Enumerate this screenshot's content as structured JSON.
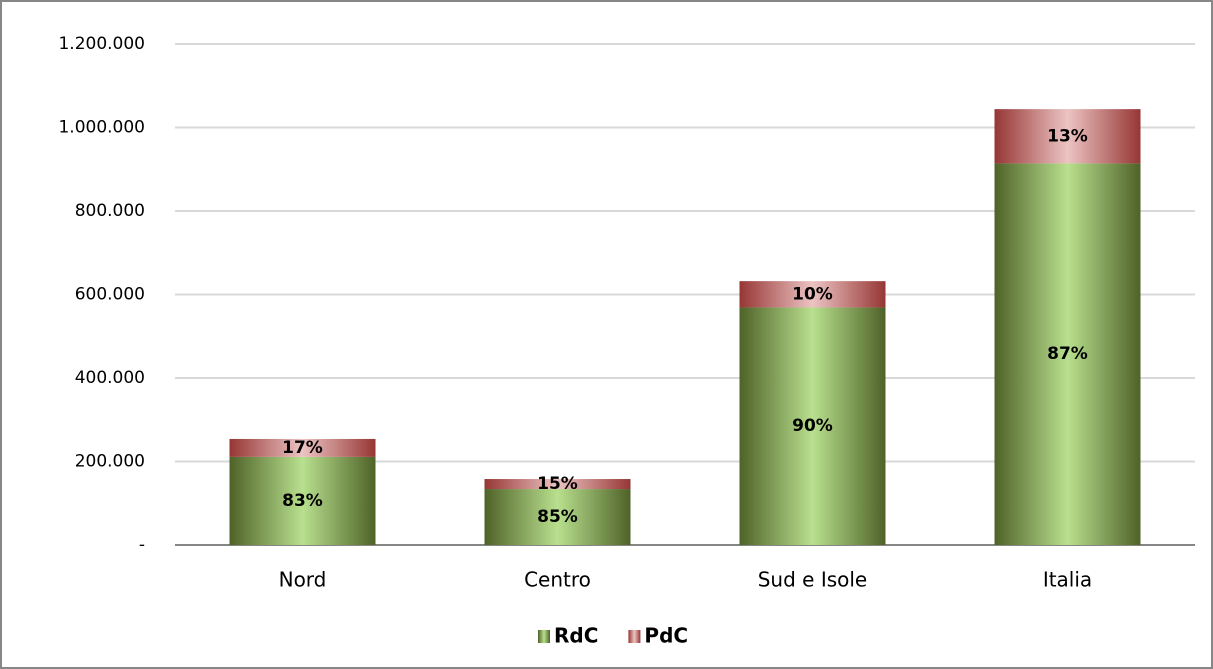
{
  "chart_data": {
    "type": "stacked_bar",
    "categories": [
      "Nord",
      "Centro",
      "Sud e Isole",
      "Italia"
    ],
    "series": [
      {
        "name": "RdC",
        "gradient": [
          "#4f6228",
          "#b8e08e"
        ],
        "values": [
          211000,
          134000,
          569000,
          914000
        ],
        "share_labels": [
          "83%",
          "85%",
          "90%",
          "87%"
        ]
      },
      {
        "name": "PdC",
        "gradient": [
          "#963634",
          "#ecc4c3"
        ],
        "values": [
          43000,
          24000,
          63000,
          130000
        ],
        "share_labels": [
          "17%",
          "15%",
          "10%",
          "13%"
        ]
      }
    ],
    "ylim": [
      0,
      1200000
    ],
    "yticks": [
      {
        "value": 0,
        "label": "-"
      },
      {
        "value": 200000,
        "label": "200.000"
      },
      {
        "value": 400000,
        "label": "400.000"
      },
      {
        "value": 600000,
        "label": "600.000"
      },
      {
        "value": 800000,
        "label": "800.000"
      },
      {
        "value": 1000000,
        "label": "1.000.000"
      },
      {
        "value": 1200000,
        "label": "1.200.000"
      }
    ],
    "grid": true,
    "legend": "bottom"
  }
}
